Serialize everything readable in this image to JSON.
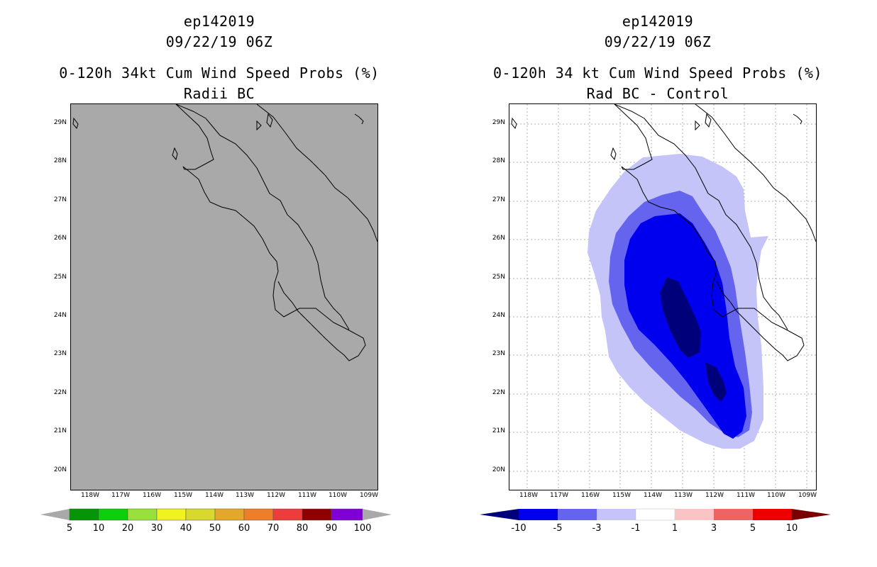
{
  "left": {
    "title1": "ep142019",
    "title2": "09/22/19 06Z",
    "title3": "0-120h 34kt Cum Wind Speed Probs (%)",
    "title4": "Radii BC",
    "map_fill_color": "#a9a9a9",
    "colorbar": {
      "colors": [
        "#a9a9a9",
        "#069506",
        "#0bd00b",
        "#98e13c",
        "#f2f21e",
        "#d9d92d",
        "#e3a72c",
        "#ee7f2a",
        "#ee3c3c",
        "#8e0000",
        "#7e00d7",
        "#a9a9a9"
      ],
      "labels": [
        "5",
        "10",
        "20",
        "30",
        "40",
        "50",
        "60",
        "70",
        "80",
        "90",
        "100"
      ]
    }
  },
  "right": {
    "title1": "ep142019",
    "title2": "09/22/19 06Z",
    "title3": "0-120h 34 kt Cum Wind Speed Probs (%)",
    "title4": "Rad BC - Control",
    "colorbar": {
      "colors": [
        "#00007a",
        "#0000ee",
        "#6464ee",
        "#c4c4f8",
        "#ffffff",
        "#f8c4c4",
        "#ee6464",
        "#ee0000",
        "#7a0000"
      ],
      "labels": [
        "-10",
        "-5",
        "-3",
        "-1",
        "1",
        "3",
        "5",
        "10"
      ]
    }
  },
  "axes": {
    "y_ticks": [
      "29N",
      "28N",
      "27N",
      "26N",
      "25N",
      "24N",
      "23N",
      "22N",
      "21N",
      "20N"
    ],
    "x_ticks": [
      "118W",
      "117W",
      "116W",
      "115W",
      "114W",
      "113W",
      "112W",
      "111W",
      "110W",
      "109W"
    ],
    "lat_range": [
      19.5,
      29.5
    ],
    "lon_range": [
      -118.6,
      -108.7
    ]
  },
  "contours": {
    "level_neg1": "#c4c4f8",
    "level_neg3": "#6464ee",
    "level_neg5": "#0000ee",
    "level_neg10": "#00007a"
  }
}
